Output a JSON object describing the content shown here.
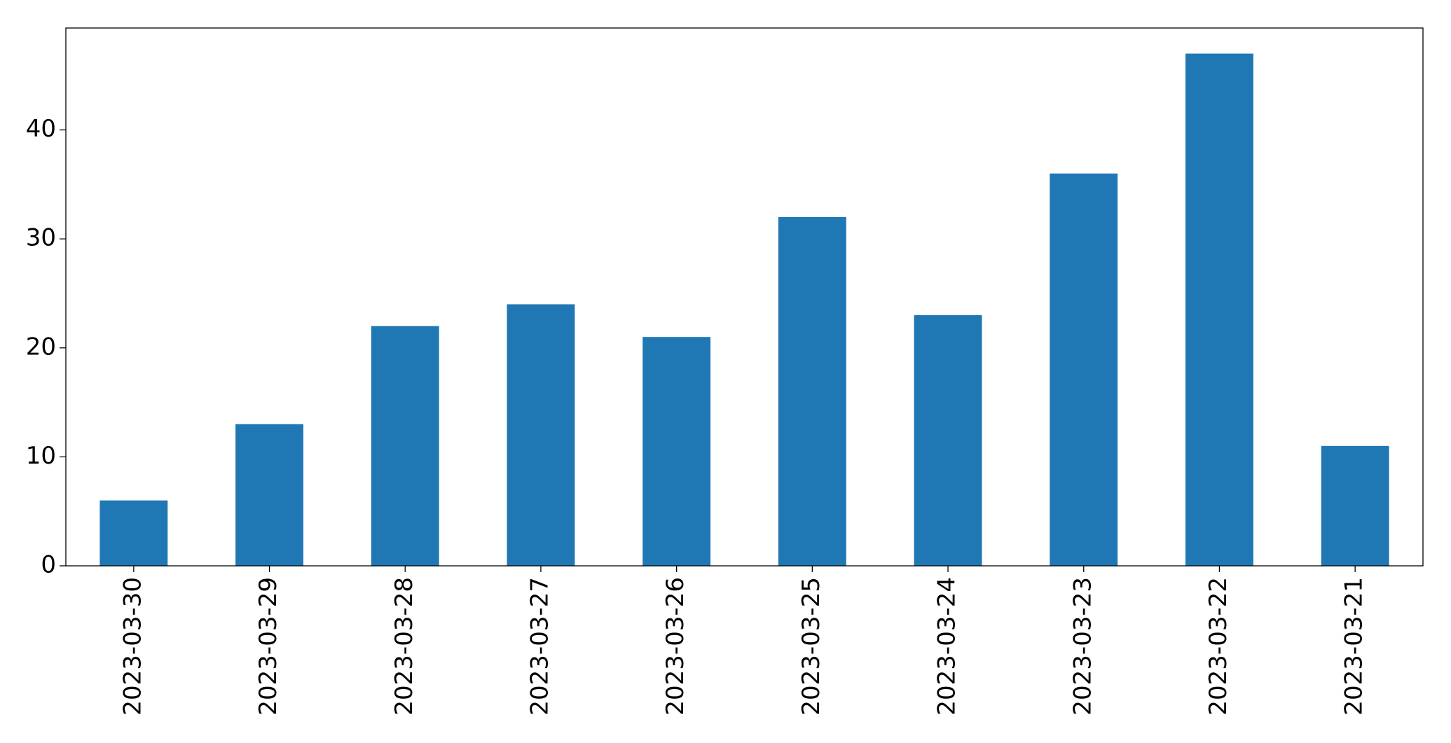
{
  "chart_data": {
    "type": "bar",
    "categories": [
      "2023-03-30",
      "2023-03-29",
      "2023-03-28",
      "2023-03-27",
      "2023-03-26",
      "2023-03-25",
      "2023-03-24",
      "2023-03-23",
      "2023-03-22",
      "2023-03-21"
    ],
    "values": [
      6,
      13,
      22,
      24,
      21,
      32,
      23,
      36,
      47,
      11
    ],
    "color": "#1f77b4",
    "ylim": [
      0,
      49.35
    ],
    "yticks": [
      0,
      10,
      20,
      30,
      40
    ],
    "grid": false
  }
}
